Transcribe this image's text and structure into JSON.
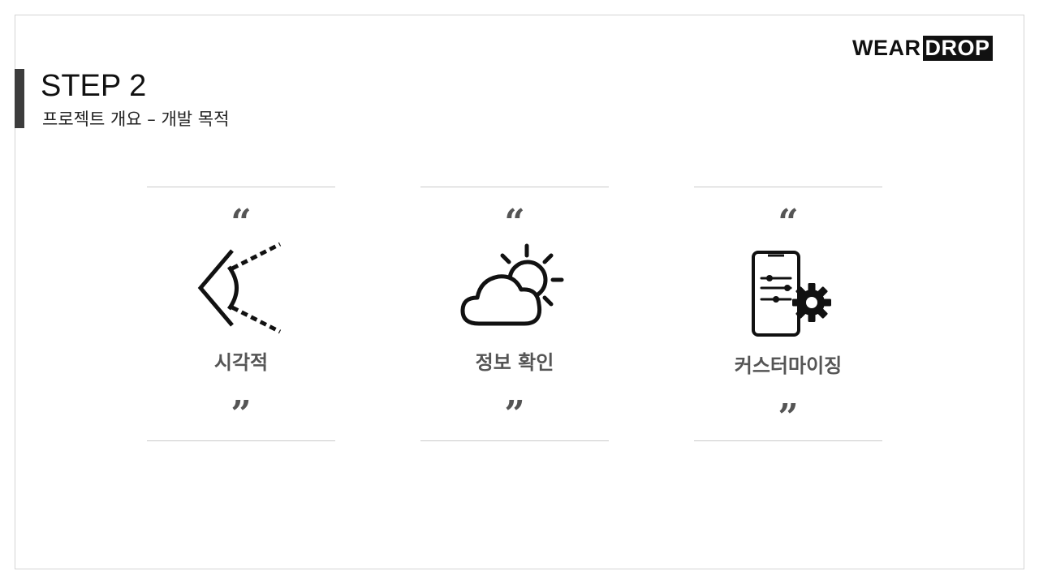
{
  "header": {
    "title": "STEP 2",
    "subtitle": "프로젝트 개요 – 개발 목적"
  },
  "logo": {
    "part1": "WEAR",
    "part2": "DROP"
  },
  "cards": [
    {
      "label": "시각적",
      "icon": "eye-vision-icon",
      "quote_open": "“",
      "quote_close": "”"
    },
    {
      "label": "정보 확인",
      "icon": "weather-cloud-sun-icon",
      "quote_open": "“",
      "quote_close": "”"
    },
    {
      "label": "커스터마이징",
      "icon": "phone-settings-gear-icon",
      "quote_open": "“",
      "quote_close": "”"
    }
  ],
  "colors": {
    "accent_bar": "#3c3c3c",
    "text": "#555555",
    "divider": "#c9c9c9"
  }
}
